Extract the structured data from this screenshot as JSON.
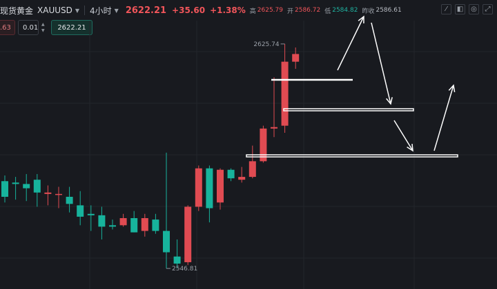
{
  "header": {
    "title": "现货黄金",
    "symbol": "XAUUSD",
    "timeframe": "4小时",
    "price": "2622.21",
    "change": "+35.60",
    "change_pct": "+1.38%",
    "high_label": "高",
    "high": "2625.79",
    "open_label": "开",
    "open": "2586.72",
    "low_label": "低",
    "low": "2584.82",
    "prev_close_label": "昨收",
    "prev_close": "2586.61"
  },
  "order": {
    "sell_price": ".63",
    "quantity": "0.01",
    "buy_price": "2622.21"
  },
  "chart_data": {
    "type": "candlestick",
    "max_label": "2625.74",
    "min_label": "2546.81",
    "candles": [
      {
        "open": 2577.5,
        "high": 2579.5,
        "low": 2570.0,
        "close": 2572.0
      },
      {
        "open": 2577.0,
        "high": 2579.0,
        "low": 2571.0,
        "close": 2576.5
      },
      {
        "open": 2576.5,
        "high": 2580.0,
        "low": 2570.5,
        "close": 2575.0
      },
      {
        "open": 2578.0,
        "high": 2580.0,
        "low": 2568.5,
        "close": 2573.5
      },
      {
        "open": 2573.0,
        "high": 2576.0,
        "low": 2569.0,
        "close": 2573.5
      },
      {
        "open": 2573.0,
        "high": 2575.5,
        "low": 2568.0,
        "close": 2573.0
      },
      {
        "open": 2572.0,
        "high": 2575.5,
        "low": 2566.5,
        "close": 2569.5
      },
      {
        "open": 2569.0,
        "high": 2574.0,
        "low": 2562.0,
        "close": 2565.0
      },
      {
        "open": 2566.0,
        "high": 2569.0,
        "low": 2560.0,
        "close": 2565.5
      },
      {
        "open": 2565.5,
        "high": 2568.5,
        "low": 2557.0,
        "close": 2561.5
      },
      {
        "open": 2562.0,
        "high": 2564.0,
        "low": 2560.5,
        "close": 2561.5
      },
      {
        "open": 2562.0,
        "high": 2566.0,
        "low": 2561.5,
        "close": 2564.5
      },
      {
        "open": 2564.5,
        "high": 2567.0,
        "low": 2559.5,
        "close": 2559.5
      },
      {
        "open": 2560.0,
        "high": 2566.0,
        "low": 2558.0,
        "close": 2564.5
      },
      {
        "open": 2564.0,
        "high": 2566.0,
        "low": 2559.0,
        "close": 2560.0
      },
      {
        "open": 2560.0,
        "high": 2587.5,
        "low": 2546.8,
        "close": 2552.5
      },
      {
        "open": 2551.0,
        "high": 2557.0,
        "low": 2546.81,
        "close": 2548.5
      },
      {
        "open": 2549.0,
        "high": 2569.0,
        "low": 2548.0,
        "close": 2568.5
      },
      {
        "open": 2568.5,
        "high": 2583.0,
        "low": 2567.0,
        "close": 2582.0
      },
      {
        "open": 2582.0,
        "high": 2583.0,
        "low": 2563.0,
        "close": 2568.0
      },
      {
        "open": 2570.0,
        "high": 2582.0,
        "low": 2567.5,
        "close": 2581.5
      },
      {
        "open": 2581.5,
        "high": 2582.0,
        "low": 2577.5,
        "close": 2578.5
      },
      {
        "open": 2578.0,
        "high": 2582.5,
        "low": 2577.0,
        "close": 2579.0
      },
      {
        "open": 2579.0,
        "high": 2590.0,
        "low": 2578.5,
        "close": 2584.5
      },
      {
        "open": 2584.5,
        "high": 2597.0,
        "low": 2584.0,
        "close": 2596.0
      },
      {
        "open": 2596.0,
        "high": 2614.0,
        "low": 2593.0,
        "close": 2596.5
      },
      {
        "open": 2597.0,
        "high": 2625.74,
        "low": 2594.5,
        "close": 2619.5
      },
      {
        "open": 2619.5,
        "high": 2624.5,
        "low": 2617.0,
        "close": 2622.21
      }
    ],
    "ylim": [
      2542,
      2632
    ]
  }
}
